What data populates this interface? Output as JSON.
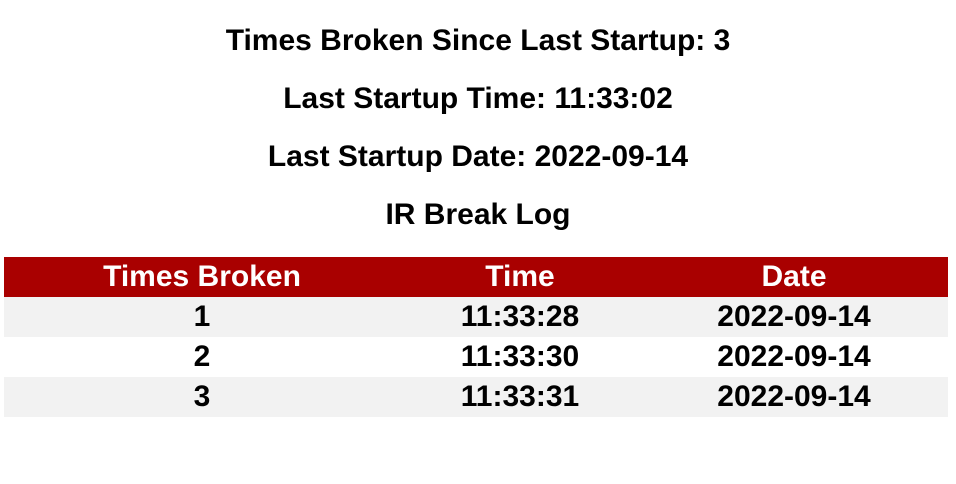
{
  "status": {
    "times_broken_line": "Times Broken Since Last Startup: 3",
    "startup_time_line": "Last Startup Time: 11:33:02",
    "startup_date_line": "Last Startup Date: 2022-09-14"
  },
  "log": {
    "title": "IR Break Log",
    "columns": [
      "Times Broken",
      "Time",
      "Date"
    ],
    "rows": [
      [
        "1",
        "11:33:28",
        "2022-09-14"
      ],
      [
        "2",
        "11:33:30",
        "2022-09-14"
      ],
      [
        "3",
        "11:33:31",
        "2022-09-14"
      ]
    ]
  },
  "colors": {
    "header_background": "#a90000",
    "header_text": "#ffffff",
    "stripe_row": "#f2f2f2"
  }
}
